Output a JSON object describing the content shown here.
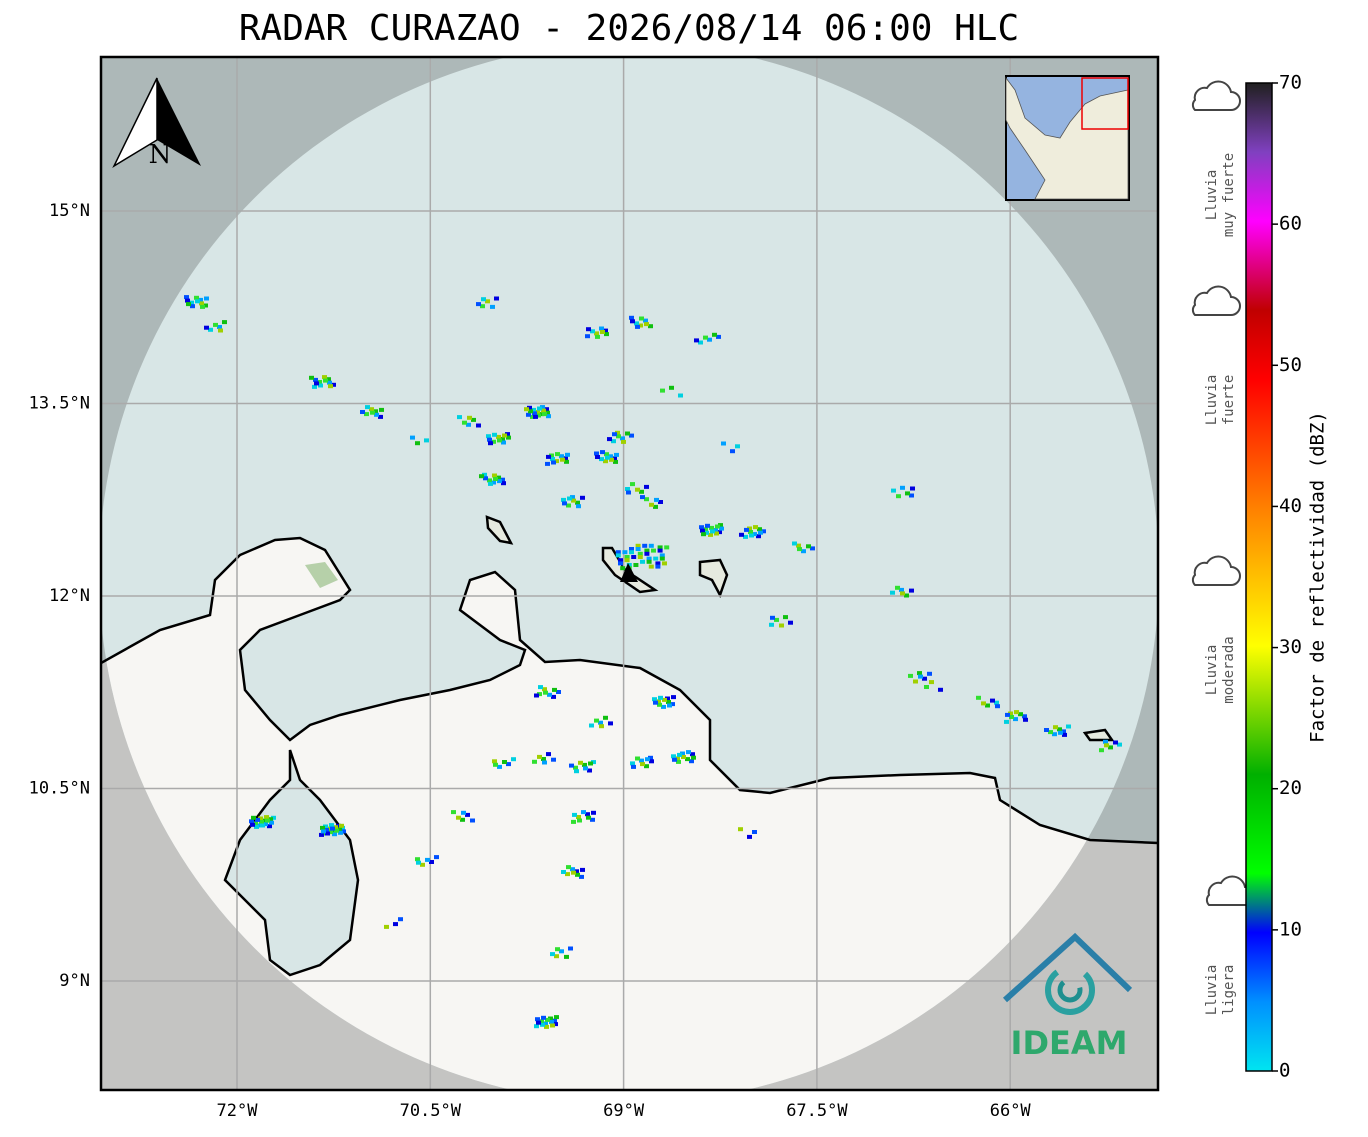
{
  "title": "RADAR CURAZAO - 2026/08/14 06:00 HLC",
  "map": {
    "north_label": "N",
    "lat_labels": [
      "15°N",
      "13.5°N",
      "12°N",
      "10.5°N",
      "9°N"
    ],
    "lon_labels": [
      "72°W",
      "70.5°W",
      "69°W",
      "67.5°W",
      "66°W"
    ]
  },
  "colorbar": {
    "label": "Factor de reflectividad (dBZ)",
    "lim": [
      0,
      70
    ],
    "ticks": [
      0,
      10,
      20,
      30,
      40,
      50,
      60,
      70
    ]
  },
  "legend": [
    {
      "lines": [
        "Lluvia",
        "muy fuerte"
      ]
    },
    {
      "lines": [
        "Lluvia",
        "fuerte"
      ]
    },
    {
      "lines": [
        "Lluvia",
        "moderada"
      ]
    },
    {
      "lines": [
        "Lluvia",
        "ligera"
      ]
    }
  ],
  "logo": "IDEAM"
}
